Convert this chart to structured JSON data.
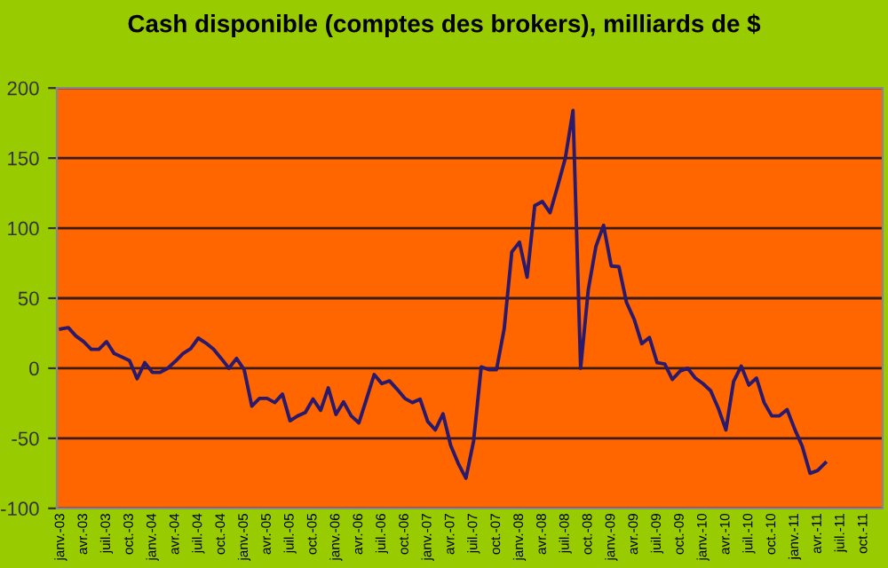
{
  "chart_data": {
    "type": "line",
    "title": "Cash disponible (comptes des brokers), milliards de $",
    "categories": [
      "janv.-03",
      null,
      null,
      "avr.-03",
      null,
      null,
      "juil.-03",
      null,
      null,
      "oct.-03",
      null,
      null,
      "janv.-04",
      null,
      null,
      "avr.-04",
      null,
      null,
      "juil.-04",
      null,
      null,
      "oct.-04",
      null,
      null,
      "janv.-05",
      null,
      null,
      "avr.-05",
      null,
      null,
      "juil.-05",
      null,
      null,
      "oct.-05",
      null,
      null,
      "janv.-06",
      null,
      null,
      "avr.-06",
      null,
      null,
      "juil.-06",
      null,
      null,
      "oct.-06",
      null,
      null,
      "janv.-07",
      null,
      null,
      "avr.-07",
      null,
      null,
      "juil.-07",
      null,
      null,
      "oct.-07",
      null,
      null,
      "janv.-08",
      null,
      null,
      "avr.-08",
      null,
      null,
      "juil.-08",
      null,
      null,
      "oct.-08",
      null,
      null,
      "janv.-09",
      null,
      null,
      "avr.-09",
      null,
      null,
      "juil.-09",
      null,
      null,
      "oct.-09",
      null,
      null,
      "janv.-10",
      null,
      null,
      "avr.-10",
      null,
      null,
      "juil.-10",
      null,
      null,
      "oct.-10",
      null,
      null,
      "janv.-11",
      null,
      null,
      "avr.-11",
      null,
      null,
      "juil.-11",
      null,
      null,
      "oct.-11",
      null,
      null
    ],
    "series": [
      {
        "color": "#2b1a6b",
        "values": [
          28,
          29,
          23,
          19,
          13.5,
          13.5,
          19,
          10.5,
          8,
          5.5,
          -7.5,
          4,
          -3,
          -3,
          0,
          5,
          10.5,
          14,
          21.5,
          18,
          13.5,
          7,
          0,
          7,
          -1,
          -27,
          -21.5,
          -21.5,
          -24.5,
          -18.5,
          -37.5,
          -34,
          -31.5,
          -22,
          -30,
          -14,
          -33,
          -24,
          -34,
          -39,
          -22,
          -4.5,
          -11,
          -9,
          -15,
          -21.5,
          -24.5,
          -22,
          -38,
          -44,
          -32.5,
          -55,
          -68,
          -78.5,
          -52,
          1,
          -1,
          -1,
          28,
          83,
          90,
          65,
          116,
          119,
          111,
          130,
          150,
          184,
          0,
          56,
          87,
          102,
          73,
          72.5,
          47,
          35,
          17.5,
          22,
          4,
          3,
          -8,
          -2,
          0,
          -7,
          -11,
          -16,
          -28.5,
          -44,
          -9.5,
          1.5,
          -12,
          -7,
          -24.5,
          -34,
          -34,
          -29.5,
          -43.5,
          -56,
          -75,
          -73,
          -67.5,
          null,
          null,
          null,
          null,
          null,
          null,
          null
        ]
      }
    ],
    "ylim": [
      -100,
      200
    ],
    "yticks": [
      -100,
      -50,
      0,
      50,
      100,
      150,
      200
    ],
    "grid": "y"
  }
}
